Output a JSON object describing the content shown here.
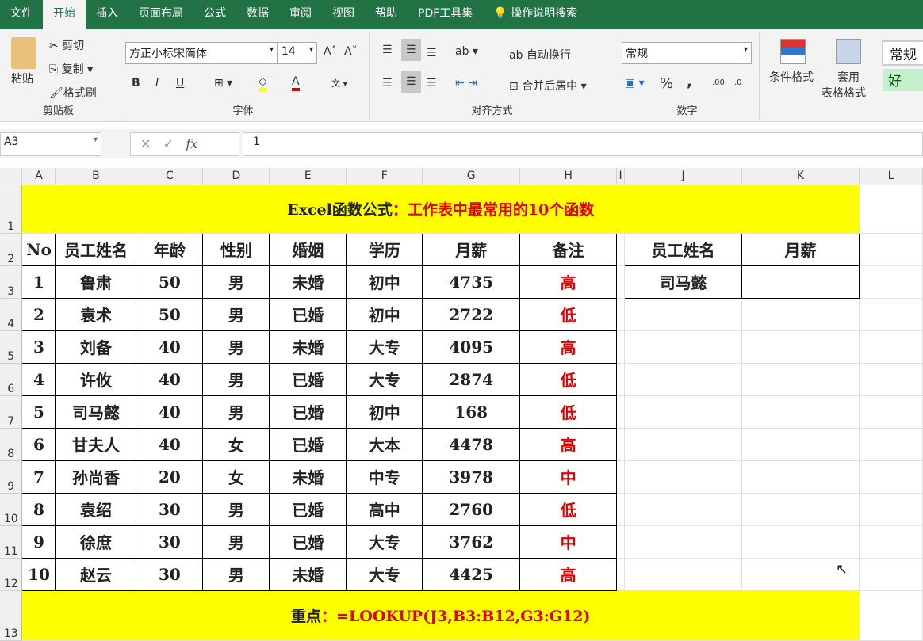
{
  "ribbon_tabs": [
    "文件",
    "开始",
    "插入",
    "页面布局",
    "公式",
    "数据",
    "审阅",
    "视图",
    "帮助",
    "PDF工具集"
  ],
  "active_tab": "开始",
  "tell_me": "操作说明搜索",
  "clipboard": {
    "paste": "粘贴",
    "cut": "剪切",
    "copy": "复制",
    "painter": "格式刷",
    "label": "剪贴板"
  },
  "font": {
    "name": "方正小标宋简体",
    "size": "14",
    "bold": "B",
    "italic": "I",
    "underline": "U",
    "label": "字体",
    "fill_color": "#ffff00",
    "font_color": "#e00000"
  },
  "alignment": {
    "wrap": "自动换行",
    "merge": "合并后居中",
    "label": "对齐方式"
  },
  "number": {
    "format": "常规",
    "percent": "%",
    "comma": ",",
    "label": "数字"
  },
  "styles": {
    "conditional": "条件格式",
    "table_fmt_1": "套用",
    "table_fmt_2": "表格格式",
    "normal": "常规",
    "good": "好"
  },
  "formula_bar": {
    "name_box": "A3",
    "value": "1"
  },
  "columns": [
    "A",
    "B",
    "C",
    "D",
    "E",
    "F",
    "G",
    "H",
    "I",
    "J",
    "K",
    "L"
  ],
  "rows": [
    "1",
    "2",
    "3",
    "4",
    "5",
    "6",
    "7",
    "8",
    "9",
    "10",
    "11",
    "12",
    "13"
  ],
  "sheet": {
    "title_black": "Excel函数公式",
    "title_red": "：工作表中最常用的10个函数",
    "headers": [
      "No",
      "员工姓名",
      "年龄",
      "性别",
      "婚姻",
      "学历",
      "月薪",
      "备注"
    ],
    "data": [
      [
        "1",
        "鲁肃",
        "50",
        "男",
        "未婚",
        "初中",
        "4735",
        "高"
      ],
      [
        "2",
        "袁术",
        "50",
        "男",
        "已婚",
        "初中",
        "2722",
        "低"
      ],
      [
        "3",
        "刘备",
        "40",
        "男",
        "未婚",
        "大专",
        "4095",
        "高"
      ],
      [
        "4",
        "许攸",
        "40",
        "男",
        "已婚",
        "大专",
        "2874",
        "低"
      ],
      [
        "5",
        "司马懿",
        "40",
        "男",
        "已婚",
        "初中",
        "168",
        "低"
      ],
      [
        "6",
        "甘夫人",
        "40",
        "女",
        "已婚",
        "大本",
        "4478",
        "高"
      ],
      [
        "7",
        "孙尚香",
        "20",
        "女",
        "未婚",
        "中专",
        "3978",
        "中"
      ],
      [
        "8",
        "袁绍",
        "30",
        "男",
        "已婚",
        "高中",
        "2760",
        "低"
      ],
      [
        "9",
        "徐庶",
        "30",
        "男",
        "已婚",
        "大专",
        "3762",
        "中"
      ],
      [
        "10",
        "赵云",
        "30",
        "男",
        "未婚",
        "大专",
        "4425",
        "高"
      ]
    ],
    "lookup_headers": [
      "员工姓名",
      "月薪"
    ],
    "lookup_name": "司马懿",
    "lookup_result": "",
    "note_black": "重点",
    "note_red": "：=LOOKUP(J3,B3:B12,G3:G12)"
  }
}
